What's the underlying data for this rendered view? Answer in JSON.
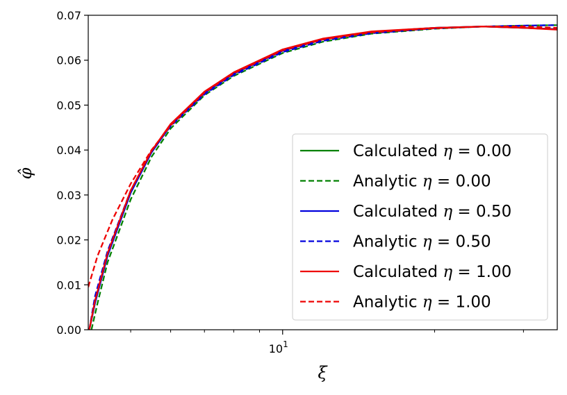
{
  "chart_data": {
    "type": "line",
    "xlabel": "ξ",
    "ylabel": "φ̂",
    "xscale": "log",
    "xlim": [
      4.12,
      35
    ],
    "ylim": [
      0,
      0.07
    ],
    "yticks": [
      0.0,
      0.01,
      0.02,
      0.03,
      0.04,
      0.05,
      0.06,
      0.07
    ],
    "ytick_labels": [
      "0.00",
      "0.01",
      "0.02",
      "0.03",
      "0.04",
      "0.05",
      "0.06",
      "0.07"
    ],
    "xtick_major": [
      10
    ],
    "xtick_major_labels": [
      "10"
    ],
    "xtick_major_exponents": [
      "1"
    ],
    "xtick_minor": [
      5,
      6,
      7,
      8,
      9,
      20,
      30
    ],
    "grid": false,
    "legend_position": "lower-right",
    "series": [
      {
        "name": "Calculated η = 0.00",
        "prefix": "Calculated ",
        "symbol": "η",
        "suffix": " = 0.00",
        "color": "#008000",
        "style": "solid",
        "x": [
          4.14,
          4.25,
          4.5,
          5.0,
          5.5,
          6.0,
          7.0,
          8.0,
          10.0,
          12.0,
          15.0,
          20.0,
          25.0,
          30.0,
          35.0
        ],
        "y": [
          0.0,
          0.006,
          0.0165,
          0.0305,
          0.0395,
          0.0455,
          0.0527,
          0.057,
          0.0621,
          0.0646,
          0.0663,
          0.0672,
          0.0675,
          0.0672,
          0.0669
        ]
      },
      {
        "name": "Analytic η = 0.00",
        "prefix": "Analytic ",
        "symbol": "η",
        "suffix": " = 0.00",
        "color": "#008000",
        "style": "dashed",
        "x": [
          4.18,
          4.3,
          4.5,
          5.0,
          5.5,
          6.0,
          7.0,
          8.0,
          10.0,
          12.0,
          15.0,
          20.0,
          25.0,
          30.0,
          35.0
        ],
        "y": [
          0.0,
          0.006,
          0.015,
          0.029,
          0.0385,
          0.0448,
          0.0522,
          0.0565,
          0.0616,
          0.0641,
          0.0659,
          0.067,
          0.0675,
          0.0677,
          0.0678
        ]
      },
      {
        "name": "Calculated η = 0.50",
        "prefix": "Calculated ",
        "symbol": "η",
        "suffix": " = 0.50",
        "color": "#0000dd",
        "style": "solid",
        "x": [
          4.14,
          4.25,
          4.5,
          5.0,
          5.5,
          6.0,
          7.0,
          8.0,
          10.0,
          12.0,
          15.0,
          20.0,
          25.0,
          30.0,
          35.0
        ],
        "y": [
          0.0,
          0.006,
          0.0165,
          0.0305,
          0.0395,
          0.0455,
          0.0527,
          0.057,
          0.0621,
          0.0646,
          0.0663,
          0.0672,
          0.0675,
          0.0672,
          0.0669
        ]
      },
      {
        "name": "Analytic η = 0.50",
        "prefix": "Analytic ",
        "symbol": "η",
        "suffix": " = 0.50",
        "color": "#0000dd",
        "style": "dashed",
        "x": [
          4.14,
          4.25,
          4.5,
          5.0,
          5.5,
          6.0,
          7.0,
          8.0,
          10.0,
          12.0,
          15.0,
          20.0,
          25.0,
          30.0,
          35.0
        ],
        "y": [
          0.0,
          0.0075,
          0.0175,
          0.031,
          0.0398,
          0.0453,
          0.0524,
          0.0567,
          0.0618,
          0.0643,
          0.066,
          0.0671,
          0.0675,
          0.0677,
          0.0678
        ]
      },
      {
        "name": "Calculated η = 1.00",
        "prefix": "Calculated ",
        "symbol": "η",
        "suffix": " = 1.00",
        "color": "#ee0000",
        "style": "solid",
        "x": [
          4.14,
          4.25,
          4.5,
          5.0,
          5.5,
          6.0,
          7.0,
          8.0,
          10.0,
          12.0,
          15.0,
          20.0,
          25.0,
          30.0,
          35.0
        ],
        "y": [
          0.0,
          0.0065,
          0.017,
          0.031,
          0.0398,
          0.0458,
          0.053,
          0.0573,
          0.0624,
          0.0648,
          0.0664,
          0.0672,
          0.0675,
          0.0672,
          0.0668
        ]
      },
      {
        "name": "Analytic η = 1.00",
        "prefix": "Analytic ",
        "symbol": "η",
        "suffix": " = 1.00",
        "color": "#ee0000",
        "style": "dashed",
        "x": [
          4.12,
          4.3,
          4.6,
          5.0,
          5.5,
          6.0,
          7.0,
          8.0,
          10.0,
          12.0,
          15.0,
          20.0,
          25.0,
          30.0,
          35.0
        ],
        "y": [
          0.0095,
          0.0165,
          0.0245,
          0.0325,
          0.04,
          0.0455,
          0.0528,
          0.0571,
          0.0622,
          0.0646,
          0.0662,
          0.0671,
          0.0675,
          0.0675,
          0.0672
        ]
      }
    ]
  }
}
